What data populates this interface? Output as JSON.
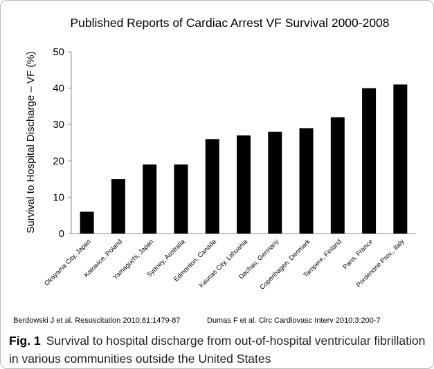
{
  "chart_data": {
    "type": "bar",
    "title": "Published Reports of Cardiac Arrest VF Survival 2000-2008",
    "y_label": "Survival to Hospital Discharge – VF (%)",
    "categories": [
      "Okayama City, Japan",
      "Katowice, Poland",
      "Yamaguchi, Japan",
      "Sydney, Australia",
      "Edmonton, Canada",
      "Kaunas City, Lithuania",
      "Dachau, Germany",
      "Copenhagen, Denmark",
      "Tampere, Finland",
      "Paris, France",
      "Pordenone Prov., Italy"
    ],
    "values": [
      6,
      15,
      19,
      19,
      26,
      27,
      28,
      29,
      32,
      40,
      41
    ],
    "color": "#000000",
    "ylim": [
      0,
      50
    ],
    "yticks": [
      0,
      10,
      20,
      30,
      40,
      50
    ],
    "grid": false
  },
  "references": [
    "Berdowski J et al.  Resuscitation 2010;81:1479-87",
    "Dumas F et al.  Circ Cardiovasc Interv 2010;3:200-7"
  ],
  "caption": {
    "label": "Fig. 1",
    "text": "Survival to hospital discharge from out-of-hospital ventricular fibrillation in various communities outside the United States"
  }
}
